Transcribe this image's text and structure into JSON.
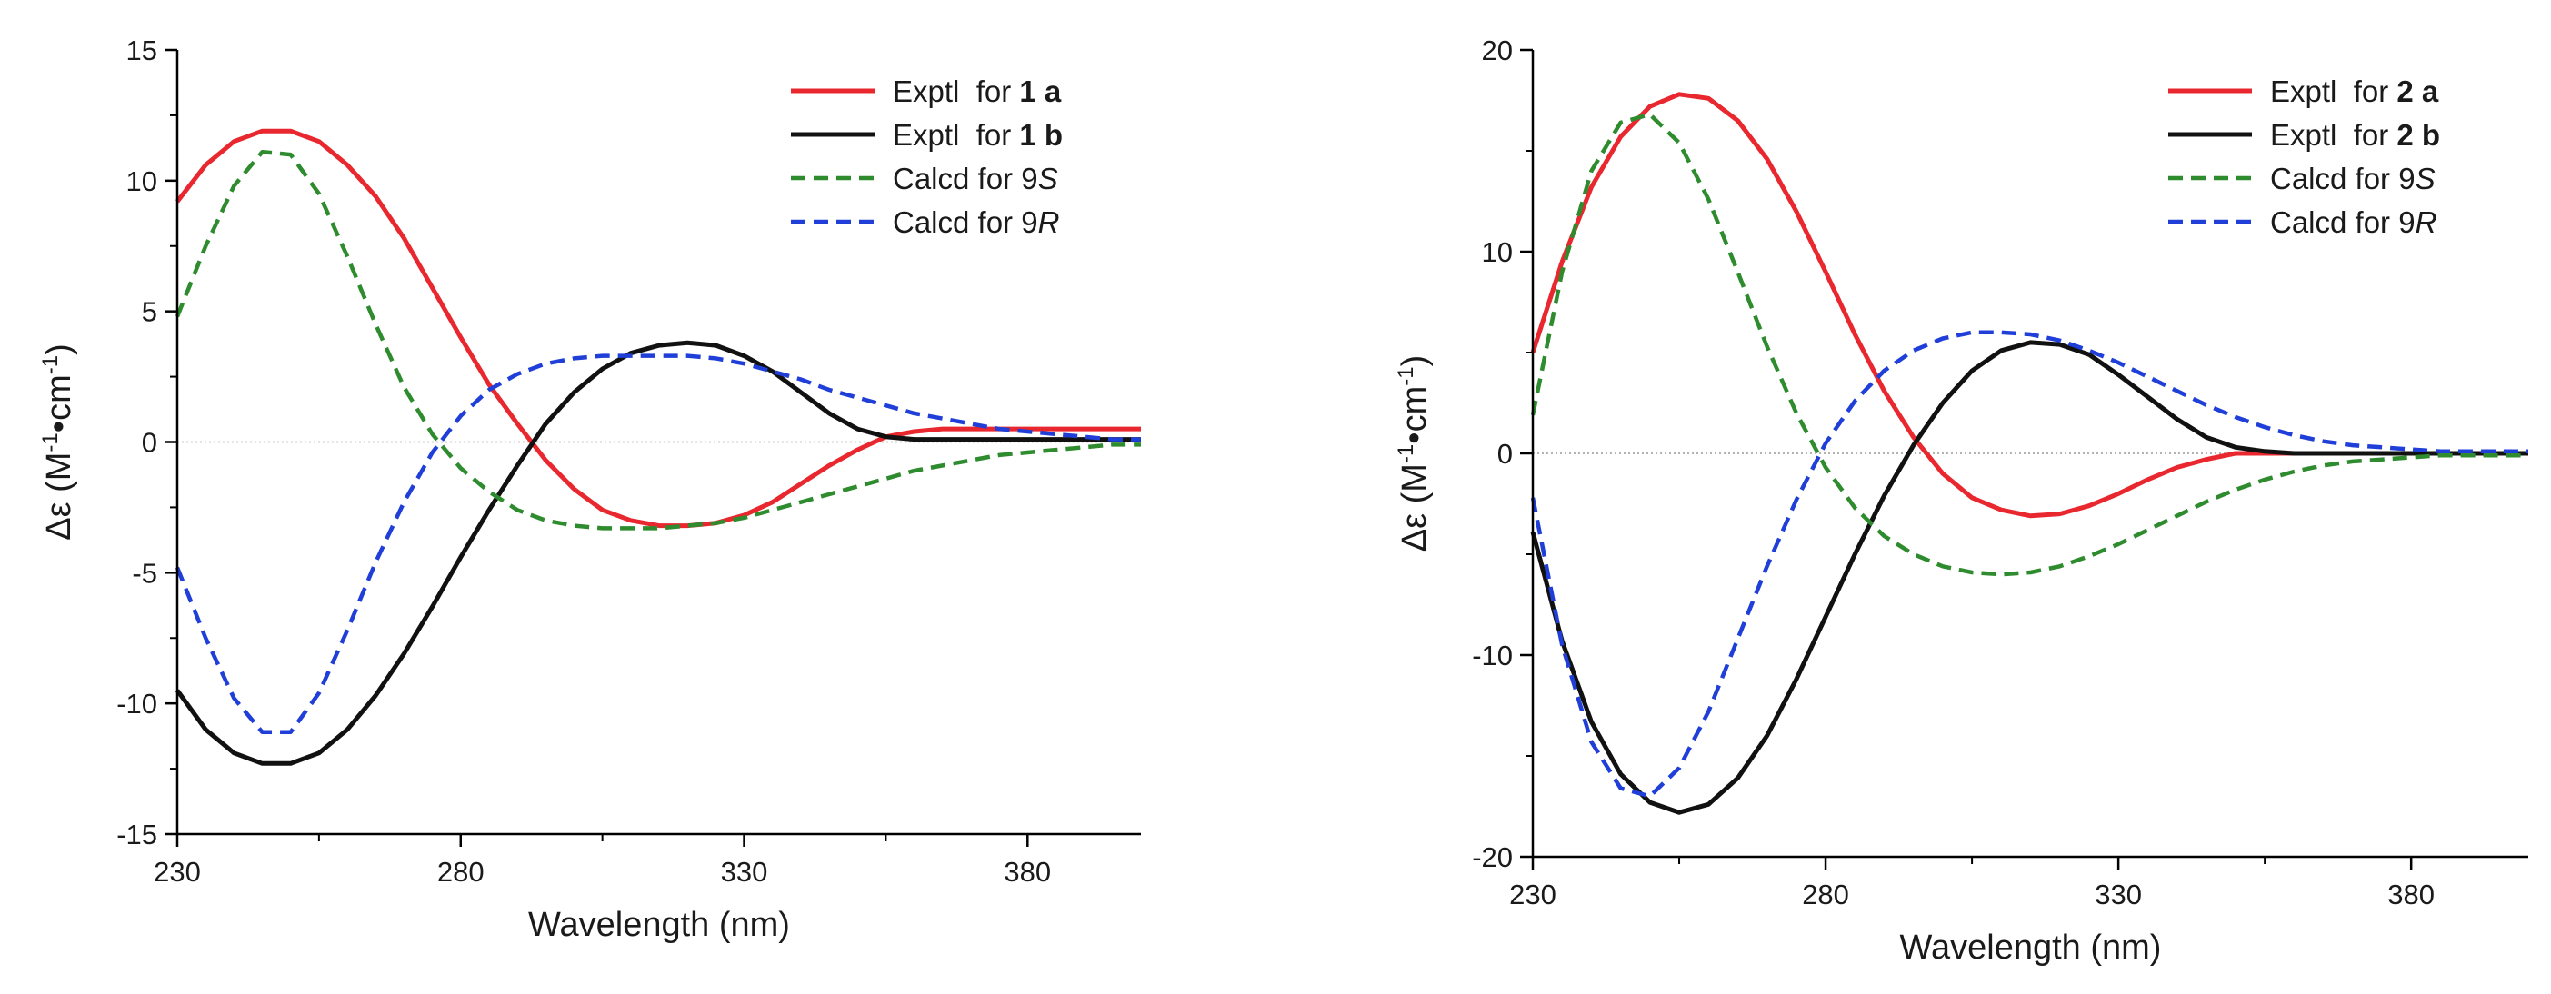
{
  "chart_data": [
    {
      "id": "panel-1",
      "type": "line",
      "xlabel": "Wavelength (nm)",
      "ylabel_main": "Δε (M",
      "ylabel_sup1": "-1",
      "ylabel_mid": "•cm",
      "ylabel_sup2": "-1",
      "ylabel_end": ")",
      "xlim": [
        230,
        400
      ],
      "ylim": [
        -15,
        15
      ],
      "xticks": [
        230,
        280,
        330,
        380
      ],
      "xticks_minor": [
        255,
        305,
        355
      ],
      "yticks": [
        -15,
        -10,
        -5,
        0,
        5,
        10,
        15
      ],
      "yticks_minor": [
        -12.5,
        -7.5,
        -2.5,
        2.5,
        7.5,
        12.5
      ],
      "zero_line": true,
      "legend": [
        {
          "prefix": "Exptl  for ",
          "bold": "1",
          "bold2": "a",
          "italic": "",
          "color": "#e8282e",
          "dash": "solid"
        },
        {
          "prefix": "Exptl  for ",
          "bold": "1",
          "bold2": "b",
          "italic": "",
          "color": "#111111",
          "dash": "solid"
        },
        {
          "prefix": "Calcd for 9",
          "bold": "",
          "bold2": "",
          "italic": "S",
          "color": "#2e8b2e",
          "dash": "dashed"
        },
        {
          "prefix": "Calcd for 9",
          "bold": "",
          "bold2": "",
          "italic": "R",
          "color": "#1f3fd8",
          "dash": "dashed"
        }
      ],
      "series": [
        {
          "name": "Exptl for 1a",
          "color": "#e8282e",
          "dash": "solid",
          "x": [
            230,
            235,
            240,
            245,
            250,
            255,
            260,
            265,
            270,
            275,
            280,
            285,
            290,
            295,
            300,
            305,
            310,
            315,
            320,
            325,
            330,
            335,
            340,
            345,
            350,
            355,
            360,
            365,
            370,
            375,
            380,
            385,
            390,
            395,
            400
          ],
          "y": [
            9.2,
            10.6,
            11.5,
            11.9,
            11.9,
            11.5,
            10.6,
            9.4,
            7.8,
            5.9,
            4.0,
            2.2,
            0.7,
            -0.7,
            -1.8,
            -2.6,
            -3.0,
            -3.2,
            -3.2,
            -3.1,
            -2.8,
            -2.3,
            -1.6,
            -0.9,
            -0.3,
            0.2,
            0.4,
            0.5,
            0.5,
            0.5,
            0.5,
            0.5,
            0.5,
            0.5,
            0.5
          ]
        },
        {
          "name": "Exptl for 1b",
          "color": "#111111",
          "dash": "solid",
          "x": [
            230,
            235,
            240,
            245,
            250,
            255,
            260,
            265,
            270,
            275,
            280,
            285,
            290,
            295,
            300,
            305,
            310,
            315,
            320,
            325,
            330,
            335,
            340,
            345,
            350,
            355,
            360,
            365,
            370,
            375,
            380,
            385,
            390,
            395,
            400
          ],
          "y": [
            -9.5,
            -11.0,
            -11.9,
            -12.3,
            -12.3,
            -11.9,
            -11.0,
            -9.7,
            -8.1,
            -6.3,
            -4.4,
            -2.6,
            -0.9,
            0.7,
            1.9,
            2.8,
            3.4,
            3.7,
            3.8,
            3.7,
            3.3,
            2.7,
            1.9,
            1.1,
            0.5,
            0.2,
            0.1,
            0.1,
            0.1,
            0.1,
            0.1,
            0.1,
            0.1,
            0.1,
            0.1
          ]
        },
        {
          "name": "Calcd for 9S",
          "color": "#2e8b2e",
          "dash": "dashed",
          "x": [
            230,
            235,
            240,
            245,
            250,
            255,
            260,
            265,
            270,
            275,
            280,
            285,
            290,
            295,
            300,
            305,
            310,
            315,
            320,
            325,
            330,
            335,
            340,
            345,
            350,
            355,
            360,
            365,
            370,
            375,
            380,
            385,
            390,
            395,
            400
          ],
          "y": [
            4.8,
            7.5,
            9.8,
            11.1,
            11.0,
            9.5,
            7.1,
            4.5,
            2.1,
            0.3,
            -1.0,
            -1.9,
            -2.6,
            -3.0,
            -3.2,
            -3.3,
            -3.3,
            -3.3,
            -3.2,
            -3.1,
            -2.9,
            -2.6,
            -2.3,
            -2.0,
            -1.7,
            -1.4,
            -1.1,
            -0.9,
            -0.7,
            -0.5,
            -0.4,
            -0.3,
            -0.2,
            -0.1,
            -0.1
          ]
        },
        {
          "name": "Calcd for 9R",
          "color": "#1f3fd8",
          "dash": "dashed",
          "x": [
            230,
            235,
            240,
            245,
            250,
            255,
            260,
            265,
            270,
            275,
            280,
            285,
            290,
            295,
            300,
            305,
            310,
            315,
            320,
            325,
            330,
            335,
            340,
            345,
            350,
            355,
            360,
            365,
            370,
            375,
            380,
            385,
            390,
            395,
            400
          ],
          "y": [
            -4.8,
            -7.5,
            -9.8,
            -11.1,
            -11.1,
            -9.6,
            -7.2,
            -4.6,
            -2.3,
            -0.4,
            1.0,
            2.0,
            2.6,
            3.0,
            3.2,
            3.3,
            3.3,
            3.3,
            3.3,
            3.2,
            3.0,
            2.7,
            2.4,
            2.0,
            1.7,
            1.4,
            1.1,
            0.9,
            0.7,
            0.5,
            0.4,
            0.3,
            0.2,
            0.1,
            0.1
          ]
        }
      ]
    },
    {
      "id": "panel-2",
      "type": "line",
      "xlabel": "Wavelength (nm)",
      "ylabel_main": "Δε (M",
      "ylabel_sup1": "-1",
      "ylabel_mid": "•cm",
      "ylabel_sup2": "-1",
      "ylabel_end": ")",
      "xlim": [
        230,
        400
      ],
      "ylim": [
        -20,
        20
      ],
      "xticks": [
        230,
        280,
        330,
        380
      ],
      "xticks_minor": [
        255,
        305,
        355
      ],
      "yticks": [
        -20,
        -10,
        0,
        10,
        20
      ],
      "yticks_minor": [
        -15,
        -5,
        5,
        15
      ],
      "zero_line": true,
      "legend": [
        {
          "prefix": "Exptl  for ",
          "bold": "2",
          "bold2": "a",
          "italic": "",
          "color": "#e8282e",
          "dash": "solid"
        },
        {
          "prefix": "Exptl  for ",
          "bold": "2",
          "bold2": "b",
          "italic": "",
          "color": "#111111",
          "dash": "solid"
        },
        {
          "prefix": "Calcd for 9",
          "bold": "",
          "bold2": "",
          "italic": "S",
          "color": "#2e8b2e",
          "dash": "dashed"
        },
        {
          "prefix": "Calcd for 9",
          "bold": "",
          "bold2": "",
          "italic": "R",
          "color": "#1f3fd8",
          "dash": "dashed"
        }
      ],
      "series": [
        {
          "name": "Exptl for 2a",
          "color": "#e8282e",
          "dash": "solid",
          "x": [
            230,
            235,
            240,
            245,
            250,
            255,
            260,
            265,
            270,
            275,
            280,
            285,
            290,
            295,
            300,
            305,
            310,
            315,
            320,
            325,
            330,
            335,
            340,
            345,
            350,
            355,
            360,
            365,
            370,
            375,
            380,
            385,
            390,
            395,
            400
          ],
          "y": [
            5.0,
            9.5,
            13.2,
            15.7,
            17.2,
            17.8,
            17.6,
            16.5,
            14.6,
            12.0,
            9.0,
            5.9,
            3.1,
            0.8,
            -1.0,
            -2.2,
            -2.8,
            -3.1,
            -3.0,
            -2.6,
            -2.0,
            -1.3,
            -0.7,
            -0.3,
            0.0,
            0.0,
            0.0,
            0.0,
            0.0,
            0.0,
            0.0,
            0.0,
            0.0,
            0.0,
            0.0
          ]
        },
        {
          "name": "Exptl for 2b",
          "color": "#111111",
          "dash": "solid",
          "x": [
            230,
            235,
            240,
            245,
            250,
            255,
            260,
            265,
            270,
            275,
            280,
            285,
            290,
            295,
            300,
            305,
            310,
            315,
            320,
            325,
            330,
            335,
            340,
            345,
            350,
            355,
            360,
            365,
            370,
            375,
            380,
            385,
            390,
            395,
            400
          ],
          "y": [
            -3.9,
            -9.3,
            -13.3,
            -15.9,
            -17.3,
            -17.8,
            -17.4,
            -16.1,
            -14.0,
            -11.2,
            -8.1,
            -5.0,
            -2.1,
            0.4,
            2.5,
            4.1,
            5.1,
            5.5,
            5.4,
            4.9,
            3.9,
            2.8,
            1.7,
            0.8,
            0.3,
            0.1,
            0.0,
            0.0,
            0.0,
            0.0,
            0.0,
            0.0,
            0.0,
            0.0,
            0.0
          ]
        },
        {
          "name": "Calcd for 9S",
          "color": "#2e8b2e",
          "dash": "dashed",
          "x": [
            230,
            235,
            240,
            245,
            250,
            255,
            260,
            265,
            270,
            275,
            280,
            285,
            290,
            295,
            300,
            305,
            310,
            315,
            320,
            325,
            330,
            335,
            340,
            345,
            350,
            355,
            360,
            365,
            370,
            375,
            380,
            385,
            390,
            395,
            400
          ],
          "y": [
            1.9,
            9.0,
            14.0,
            16.4,
            16.8,
            15.4,
            12.6,
            9.0,
            5.3,
            2.0,
            -0.7,
            -2.7,
            -4.1,
            -5.0,
            -5.6,
            -5.9,
            -6.0,
            -5.9,
            -5.6,
            -5.1,
            -4.5,
            -3.8,
            -3.1,
            -2.4,
            -1.8,
            -1.3,
            -0.9,
            -0.6,
            -0.4,
            -0.3,
            -0.2,
            -0.1,
            -0.1,
            -0.1,
            -0.1
          ]
        },
        {
          "name": "Calcd for 9R",
          "color": "#1f3fd8",
          "dash": "dashed",
          "x": [
            230,
            235,
            240,
            245,
            250,
            255,
            260,
            265,
            270,
            275,
            280,
            285,
            290,
            295,
            300,
            305,
            310,
            315,
            320,
            325,
            330,
            335,
            340,
            345,
            350,
            355,
            360,
            365,
            370,
            375,
            380,
            385,
            390,
            395,
            400
          ],
          "y": [
            -2.2,
            -9.5,
            -14.3,
            -16.6,
            -17.0,
            -15.6,
            -12.8,
            -9.2,
            -5.6,
            -2.3,
            0.5,
            2.6,
            4.1,
            5.1,
            5.7,
            6.0,
            6.0,
            5.9,
            5.6,
            5.1,
            4.5,
            3.8,
            3.1,
            2.4,
            1.8,
            1.3,
            0.9,
            0.6,
            0.4,
            0.3,
            0.2,
            0.1,
            0.1,
            0.1,
            0.1
          ]
        }
      ]
    }
  ]
}
